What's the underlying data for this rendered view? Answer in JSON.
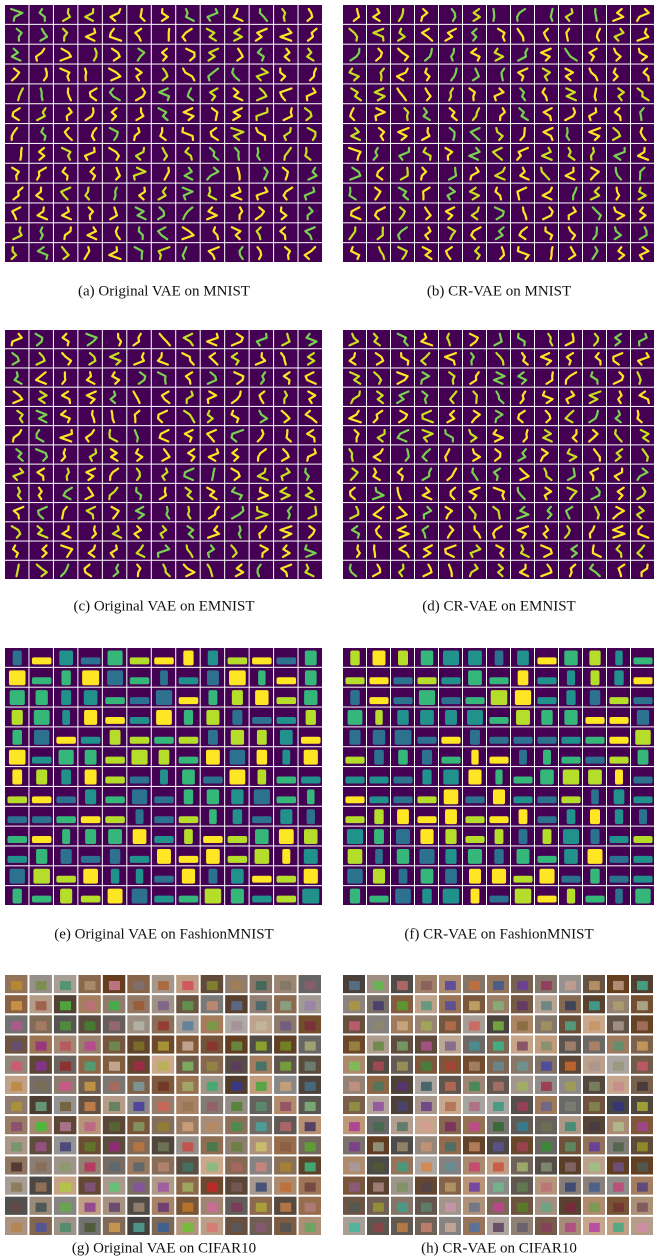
{
  "figure": {
    "panels": [
      {
        "caption": "(a) Original VAE on MNIST"
      },
      {
        "caption": "(b) CR-VAE on MNIST"
      },
      {
        "caption": "(c) Original VAE on EMNIST"
      },
      {
        "caption": "(d) CR-VAE on EMNIST"
      },
      {
        "caption": "(e) Original VAE on FashionMNIST"
      },
      {
        "caption": "(f) CR-VAE on FashionMNIST"
      },
      {
        "caption": "(g) Original VAE on CIFAR10"
      },
      {
        "caption": "(h) CR-VAE on CIFAR10"
      }
    ]
  }
}
